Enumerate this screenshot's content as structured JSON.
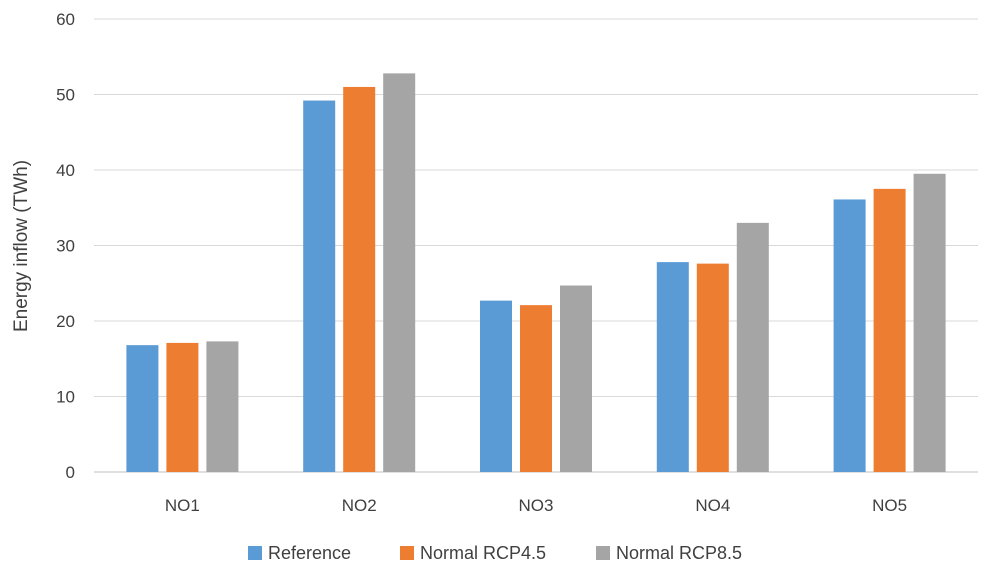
{
  "chart_data": {
    "type": "bar",
    "title": "",
    "xlabel": "",
    "ylabel": "Energy inflow (TWh)",
    "ylim": [
      0,
      60
    ],
    "yticks": [
      0,
      10,
      20,
      30,
      40,
      50,
      60
    ],
    "grid": true,
    "legend_position": "bottom",
    "categories": [
      "NO1",
      "NO2",
      "NO3",
      "NO4",
      "NO5"
    ],
    "series": [
      {
        "name": "Reference",
        "color": "#5B9BD5",
        "values": [
          16.8,
          49.2,
          22.7,
          27.8,
          36.1
        ]
      },
      {
        "name": "Normal RCP4.5",
        "color": "#ED7D31",
        "values": [
          17.1,
          51.0,
          22.1,
          27.6,
          37.5
        ]
      },
      {
        "name": "Normal RCP8.5",
        "color": "#A5A5A5",
        "values": [
          17.3,
          52.8,
          24.7,
          33.0,
          39.5
        ]
      }
    ]
  }
}
